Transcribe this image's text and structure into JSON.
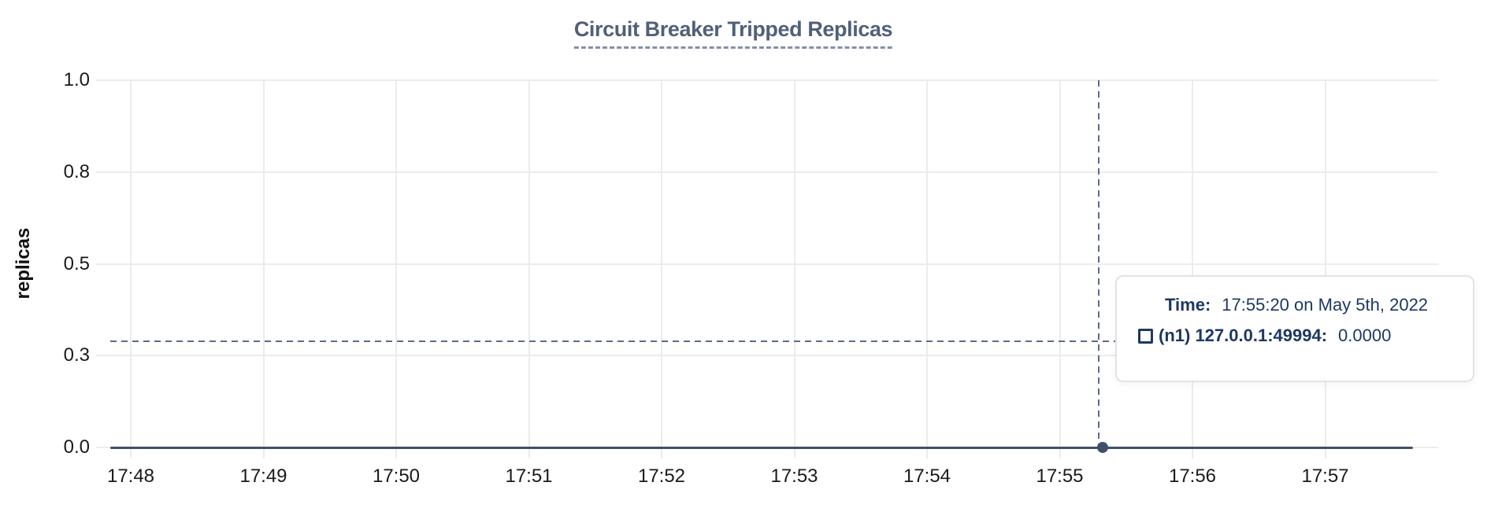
{
  "chart_data": {
    "type": "line",
    "title": "Circuit Breaker Tripped Replicas",
    "xlabel": "",
    "ylabel": "replicas",
    "x_ticks": [
      "17:48",
      "17:49",
      "17:50",
      "17:51",
      "17:52",
      "17:53",
      "17:54",
      "17:55",
      "17:56",
      "17:57"
    ],
    "y_ticks": [
      {
        "value": 1.0,
        "label": "1.0"
      },
      {
        "value": 0.75,
        "label": "0.8"
      },
      {
        "value": 0.5,
        "label": "0.5"
      },
      {
        "value": 0.25,
        "label": "0.3"
      },
      {
        "value": 0.0,
        "label": "0.0"
      }
    ],
    "ylim": [
      0,
      1
    ],
    "grid": true,
    "legend_position": "none",
    "series": [
      {
        "name": "(n1) 127.0.0.1:49994",
        "color": "#40506b",
        "constant_value": 0,
        "x_start": "17:47:50",
        "x_end": "17:57:40",
        "note": "flat line at 0 replicas across entire visible range"
      }
    ]
  },
  "cursor": {
    "snapped_time": "17:55:20",
    "snapped_value": 0,
    "hover_y_value": 0.29
  },
  "tooltip": {
    "time_label": "Time:",
    "time_value": "17:55:20 on May 5th, 2022",
    "series_label": "(n1) 127.0.0.1:49994:",
    "series_value": "0.0000"
  },
  "colors": {
    "background": "#ffffff",
    "title_text": "#50607b",
    "title_underline": "#8290a9",
    "axis_text": "#1a1a1a",
    "grid": "#ececec",
    "series": "#40506b",
    "crosshair": "#5a6d88",
    "tooltip_text": "#1d3862",
    "tooltip_border": "#e3e3e3"
  }
}
